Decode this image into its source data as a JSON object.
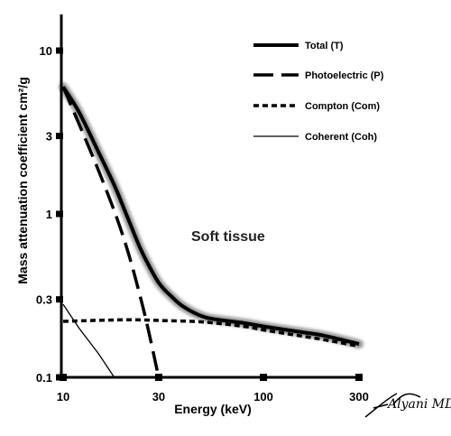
{
  "chart_data": {
    "type": "line",
    "xlabel": "Energy (keV)",
    "ylabel": "Mass attenuation coefficient cm²/g",
    "x_scale": "log",
    "y_scale": "log",
    "xlim": [
      10,
      300
    ],
    "ylim": [
      0.1,
      15
    ],
    "x_ticks": [
      {
        "value": 10,
        "label": "10"
      },
      {
        "value": 30,
        "label": "30"
      },
      {
        "value": 100,
        "label": "100"
      },
      {
        "value": 300,
        "label": "300"
      }
    ],
    "y_ticks": [
      {
        "value": 0.1,
        "label": "0.1"
      },
      {
        "value": 0.3,
        "label": "0.3"
      },
      {
        "value": 1,
        "label": "1"
      },
      {
        "value": 3,
        "label": "3"
      },
      {
        "value": 10,
        "label": "10"
      }
    ],
    "grid": false,
    "legend_position": "top-right",
    "annotation": "Soft tissue",
    "signature_text": "Alyani MD",
    "series": [
      {
        "name": "Total (T)",
        "style": "thick-solid",
        "x": [
          10,
          12,
          15,
          18,
          20,
          23,
          25,
          30,
          35,
          40,
          50,
          60,
          80,
          100,
          150,
          200,
          300
        ],
        "y": [
          6,
          4.2,
          2.4,
          1.5,
          1.1,
          0.72,
          0.57,
          0.38,
          0.31,
          0.27,
          0.235,
          0.225,
          0.215,
          0.205,
          0.19,
          0.18,
          0.16
        ]
      },
      {
        "name": "Photoelectric (P)",
        "style": "long-dash",
        "x": [
          10,
          15,
          20,
          25,
          30
        ],
        "y": [
          6,
          1.85,
          0.72,
          0.27,
          0.1
        ]
      },
      {
        "name": "Compton (Com)",
        "style": "short-dash",
        "x": [
          10,
          20,
          30,
          50,
          80,
          100,
          150,
          200,
          300
        ],
        "y": [
          0.22,
          0.225,
          0.223,
          0.218,
          0.205,
          0.195,
          0.18,
          0.17,
          0.155
        ]
      },
      {
        "name": "Coherent (Coh)",
        "style": "thin-solid",
        "x": [
          10,
          12,
          15,
          18
        ],
        "y": [
          0.28,
          0.2,
          0.14,
          0.1
        ]
      }
    ]
  }
}
